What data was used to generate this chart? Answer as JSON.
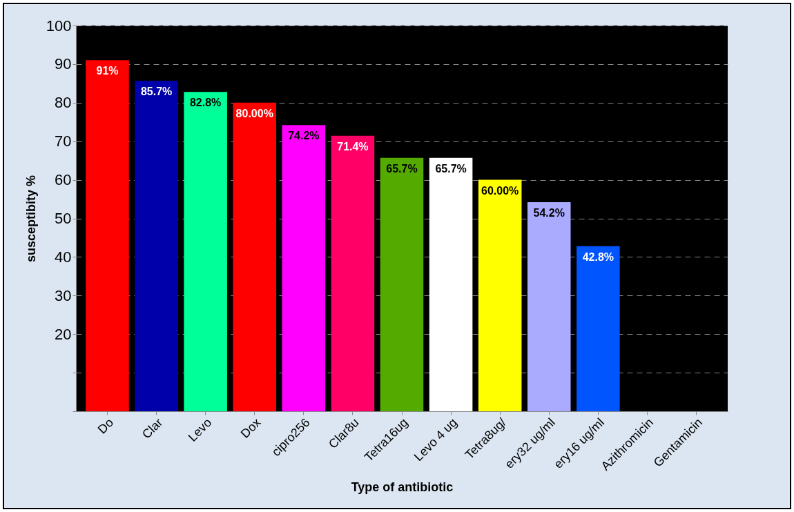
{
  "chart_data": {
    "type": "bar",
    "xlabel": "Type of antibiotic",
    "ylabel": "susceptibity %",
    "categories": [
      "Do",
      "Clar",
      "Levo",
      "Dox",
      "cipro256",
      "Clar8u",
      "Tetra16ug",
      "Levo 4 ug",
      "Tetra8ug/",
      "ery32 ug/ml",
      "ery16 ug/ml",
      "Azithromicin",
      "Gentamicin"
    ],
    "values": [
      91,
      85.7,
      82.8,
      80,
      74.2,
      71.4,
      65.7,
      65.7,
      60,
      54.2,
      42.8,
      0,
      0
    ],
    "value_labels": [
      "91%",
      "85.7%",
      "82.8%",
      "80.00%",
      "74.2%",
      "71.4%",
      "65.7%",
      "65.7%",
      "60.00%",
      "54.2%",
      "42.8%",
      null,
      null
    ],
    "colors": [
      "#ff0000",
      "#0000aa",
      "#00ff99",
      "#ff0000",
      "#ff00ff",
      "#ff0066",
      "#55aa00",
      "#ffffff",
      "#ffff00",
      "#aaaaff",
      "#0055ff",
      "#000066",
      "#000066"
    ],
    "ylim": [
      0,
      100
    ],
    "yticks": [
      {
        "value": 0,
        "label": null
      },
      {
        "value": 10,
        "label": null
      },
      20,
      30,
      40,
      50,
      60,
      70,
      80,
      90,
      100
    ],
    "grid": "y"
  }
}
